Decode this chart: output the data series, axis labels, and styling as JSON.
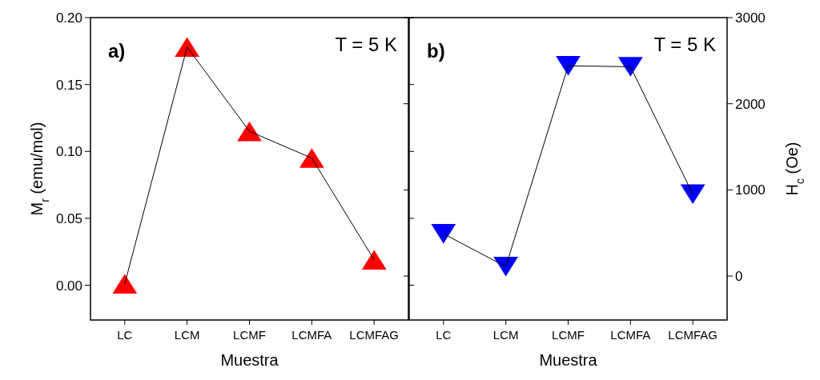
{
  "chart_data": [
    {
      "type": "line",
      "categories": [
        "LC",
        "LCM",
        "LCMF",
        "LCMFA",
        "LCMFAG"
      ],
      "xlabel": "Muestra",
      "ylabel": "M$_{r}$ (emu/mol)",
      "ylim": [
        -0.026,
        0.2
      ],
      "yticks": [
        {
          "value": 0,
          "label": "0.00"
        },
        {
          "value": 0.05,
          "label": "0.05"
        },
        {
          "value": 0.1,
          "label": "0.10"
        },
        {
          "value": 0.15,
          "label": "0.15"
        },
        {
          "value": 0.2,
          "label": "0.20"
        }
      ],
      "line_style": "solid",
      "annotations": [
        "a)",
        "T = 5 K"
      ],
      "series": [
        {
          "type": "scatter",
          "marker": "triangle",
          "color": "#ff0000",
          "values": [
            0.001,
            0.178,
            0.115,
            0.095,
            0.019
          ]
        },
        {
          "marker": "none",
          "color": "#000000",
          "values": [
            0.001,
            0.178,
            0.115,
            0.095,
            0.019
          ]
        }
      ]
    },
    {
      "type": "line",
      "categories": [
        "LC",
        "LCM",
        "LCMF",
        "LCMFA",
        "LCMFAG"
      ],
      "xlabel": "Muestra",
      "y2label": "H$_{c}$ (Oe)",
      "y2lim": [
        -510,
        3000
      ],
      "y2ticks": [
        0,
        1000,
        2000,
        3000
      ],
      "line_style": "solid",
      "annotations": [
        "b)",
        "T = 5 K"
      ],
      "series": [
        {
          "type": "scatter",
          "marker": "triangle-down",
          "color": "#0000ff",
          "axis": "y2",
          "values": [
            490,
            110,
            2440,
            2430,
            950
          ]
        },
        {
          "marker": "none",
          "color": "#000000",
          "axis": "y2",
          "values": [
            490,
            110,
            2440,
            2430,
            950
          ]
        }
      ]
    }
  ]
}
